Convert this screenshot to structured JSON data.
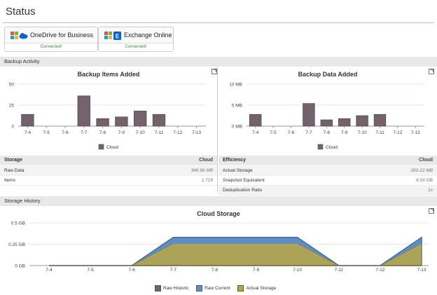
{
  "page_title": "Status",
  "services": [
    {
      "name": "OneDrive for Business",
      "status": "Connected!",
      "icon": "onedrive-icon"
    },
    {
      "name": "Exchange Online",
      "status": "Connected!",
      "icon": "exchange-icon"
    }
  ],
  "sections": {
    "backup_activity": "Backup Activity",
    "storage_history": "Storage History"
  },
  "storage_table": {
    "header": "Storage",
    "header_value": "Cloud",
    "rows": [
      {
        "label": "Raw Data",
        "value": "346.96 MB"
      },
      {
        "label": "Items",
        "value": "1,729"
      }
    ]
  },
  "efficiency_table": {
    "header": "Efficiency",
    "header_value": "Cloud",
    "rows": [
      {
        "label": "Actual Storage",
        "value": "260.22 MB"
      },
      {
        "label": "Snapshot Equivalent",
        "value": "6.59 GB"
      },
      {
        "label": "Deduplication Ratio",
        "value": "1x"
      }
    ]
  },
  "colors": {
    "cloud_bar": "#74626a",
    "raw_historic": "#74626a",
    "raw_current": "#5f8ec6",
    "actual_storage": "#b4a54a"
  },
  "chart_data": [
    {
      "type": "bar",
      "title": "Backup Items Added",
      "categories": [
        "7-4",
        "7-5",
        "7-6",
        "7-7",
        "7-8",
        "7-9",
        "7-10",
        "7-11",
        "7-12",
        "7-13"
      ],
      "series": [
        {
          "name": "Cloud",
          "values": [
            14,
            0,
            0,
            36,
            9,
            11,
            18,
            14,
            0,
            0
          ]
        }
      ],
      "yticks": [
        "0",
        "25",
        "50"
      ],
      "ylim": [
        0,
        50
      ]
    },
    {
      "type": "bar",
      "title": "Backup Data Added",
      "categories": [
        "7-4",
        "7-5",
        "7-6",
        "7-7",
        "7-8",
        "7-9",
        "7-10",
        "7-11",
        "7-12",
        "7-13"
      ],
      "series": [
        {
          "name": "Cloud",
          "values": [
            2.8,
            0,
            0,
            5.4,
            1.5,
            1.8,
            2.5,
            2.8,
            0,
            0
          ]
        }
      ],
      "yticks": [
        "0 MB",
        "5 MB",
        "10 MB"
      ],
      "ylim": [
        0,
        10
      ]
    },
    {
      "type": "area",
      "title": "Cloud Storage",
      "categories": [
        "7-4",
        "7-5",
        "7-6",
        "7-7",
        "7-8",
        "7-9",
        "7-10",
        "7-11",
        "7-12",
        "7-13"
      ],
      "series": [
        {
          "name": "Raw Historic",
          "values": [
            0,
            0,
            0,
            0,
            0,
            0,
            0,
            0,
            0,
            0
          ]
        },
        {
          "name": "Raw Current",
          "values": [
            0,
            0,
            0,
            0.33,
            0.33,
            0.33,
            0.33,
            0,
            0,
            0.33
          ]
        },
        {
          "name": "Actual Storage",
          "values": [
            0,
            0,
            0,
            0.26,
            0.26,
            0.26,
            0.26,
            0,
            0,
            0.26
          ]
        }
      ],
      "yticks": [
        "0 GB",
        "0.25 GB",
        "0.5 GB"
      ],
      "ylim": [
        0,
        0.5
      ]
    }
  ]
}
